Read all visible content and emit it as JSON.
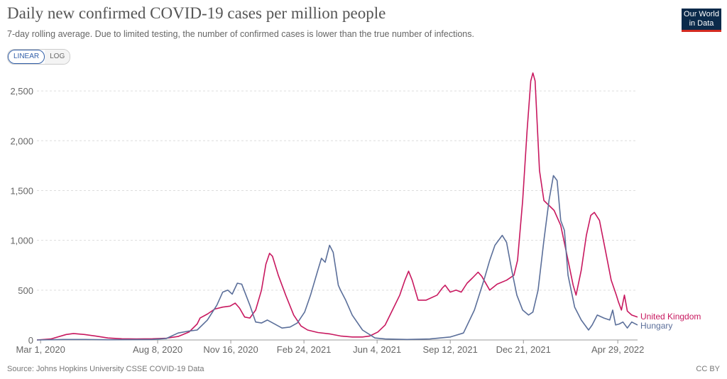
{
  "header": {
    "title": "Daily new confirmed COVID-19 cases per million people",
    "subtitle": "7-day rolling average. Due to limited testing, the number of confirmed cases is lower than the true number of infections."
  },
  "logo": {
    "line1": "Our World",
    "line2": "in Data"
  },
  "scale_toggle": {
    "linear": "LINEAR",
    "log": "LOG",
    "selected": "LINEAR"
  },
  "footer": {
    "source": "Source: Johns Hopkins University CSSE COVID-19 Data",
    "license": "CC BY"
  },
  "colors": {
    "uk": "#c8185f",
    "hungary": "#5b6f9a",
    "grid": "#dddddd"
  },
  "chart_data": {
    "type": "line",
    "title": "Daily new confirmed COVID-19 cases per million people",
    "xlabel": "",
    "ylabel": "",
    "ylim": [
      0,
      2700
    ],
    "xlim": [
      "2020-02-25",
      "2022-05-26"
    ],
    "y_ticks": [
      0,
      500,
      1000,
      1500,
      2000,
      2500
    ],
    "y_tick_labels": [
      "0",
      "500",
      "1,000",
      "1,500",
      "2,000",
      "2,500"
    ],
    "x_ticks": [
      "2020-03-01",
      "2020-08-08",
      "2020-11-16",
      "2021-02-24",
      "2021-06-04",
      "2021-09-12",
      "2021-12-21",
      "2022-04-29"
    ],
    "x_tick_labels": [
      "Mar 1, 2020",
      "Aug 8, 2020",
      "Nov 16, 2020",
      "Feb 24, 2021",
      "Jun 4, 2021",
      "Sep 12, 2021",
      "Dec 21, 2021",
      "Apr 29, 2022"
    ],
    "grid": true,
    "legend": "right, at line ends",
    "series": [
      {
        "name": "United Kingdom",
        "points": [
          [
            "2020-02-25",
            0
          ],
          [
            "2020-03-15",
            10
          ],
          [
            "2020-04-05",
            55
          ],
          [
            "2020-04-15",
            65
          ],
          [
            "2020-04-30",
            55
          ],
          [
            "2020-05-15",
            40
          ],
          [
            "2020-06-01",
            20
          ],
          [
            "2020-06-20",
            12
          ],
          [
            "2020-07-10",
            10
          ],
          [
            "2020-08-01",
            12
          ],
          [
            "2020-08-20",
            18
          ],
          [
            "2020-09-05",
            35
          ],
          [
            "2020-09-20",
            80
          ],
          [
            "2020-10-01",
            160
          ],
          [
            "2020-10-05",
            220
          ],
          [
            "2020-10-15",
            260
          ],
          [
            "2020-10-25",
            310
          ],
          [
            "2020-11-05",
            330
          ],
          [
            "2020-11-15",
            340
          ],
          [
            "2020-11-22",
            370
          ],
          [
            "2020-11-28",
            320
          ],
          [
            "2020-12-05",
            230
          ],
          [
            "2020-12-12",
            220
          ],
          [
            "2020-12-20",
            300
          ],
          [
            "2020-12-28",
            500
          ],
          [
            "2021-01-03",
            760
          ],
          [
            "2021-01-08",
            870
          ],
          [
            "2021-01-12",
            840
          ],
          [
            "2021-01-20",
            650
          ],
          [
            "2021-01-30",
            450
          ],
          [
            "2021-02-10",
            250
          ],
          [
            "2021-02-20",
            140
          ],
          [
            "2021-03-01",
            100
          ],
          [
            "2021-03-15",
            75
          ],
          [
            "2021-04-01",
            60
          ],
          [
            "2021-04-15",
            40
          ],
          [
            "2021-05-01",
            30
          ],
          [
            "2021-05-15",
            30
          ],
          [
            "2021-05-25",
            40
          ],
          [
            "2021-06-05",
            80
          ],
          [
            "2021-06-15",
            150
          ],
          [
            "2021-06-25",
            300
          ],
          [
            "2021-07-05",
            450
          ],
          [
            "2021-07-12",
            600
          ],
          [
            "2021-07-17",
            690
          ],
          [
            "2021-07-22",
            600
          ],
          [
            "2021-07-30",
            400
          ],
          [
            "2021-08-10",
            400
          ],
          [
            "2021-08-25",
            450
          ],
          [
            "2021-09-01",
            520
          ],
          [
            "2021-09-05",
            550
          ],
          [
            "2021-09-12",
            480
          ],
          [
            "2021-09-20",
            500
          ],
          [
            "2021-09-27",
            480
          ],
          [
            "2021-10-05",
            570
          ],
          [
            "2021-10-12",
            620
          ],
          [
            "2021-10-20",
            680
          ],
          [
            "2021-10-25",
            640
          ],
          [
            "2021-11-05",
            500
          ],
          [
            "2021-11-15",
            560
          ],
          [
            "2021-11-28",
            600
          ],
          [
            "2021-12-08",
            650
          ],
          [
            "2021-12-13",
            800
          ],
          [
            "2021-12-20",
            1400
          ],
          [
            "2021-12-26",
            2100
          ],
          [
            "2021-12-31",
            2600
          ],
          [
            "2022-01-03",
            2680
          ],
          [
            "2022-01-06",
            2600
          ],
          [
            "2022-01-12",
            1700
          ],
          [
            "2022-01-18",
            1400
          ],
          [
            "2022-01-25",
            1350
          ],
          [
            "2022-02-01",
            1300
          ],
          [
            "2022-02-10",
            1150
          ],
          [
            "2022-02-20",
            800
          ],
          [
            "2022-02-27",
            550
          ],
          [
            "2022-03-03",
            450
          ],
          [
            "2022-03-10",
            700
          ],
          [
            "2022-03-17",
            1050
          ],
          [
            "2022-03-23",
            1250
          ],
          [
            "2022-03-28",
            1280
          ],
          [
            "2022-04-04",
            1200
          ],
          [
            "2022-04-12",
            900
          ],
          [
            "2022-04-20",
            600
          ],
          [
            "2022-04-27",
            450
          ],
          [
            "2022-04-30",
            380
          ],
          [
            "2022-05-04",
            300
          ],
          [
            "2022-05-08",
            450
          ],
          [
            "2022-05-12",
            290
          ],
          [
            "2022-05-18",
            250
          ],
          [
            "2022-05-26",
            230
          ]
        ]
      },
      {
        "name": "Hungary",
        "points": [
          [
            "2020-02-25",
            0
          ],
          [
            "2020-04-01",
            5
          ],
          [
            "2020-05-01",
            5
          ],
          [
            "2020-06-01",
            2
          ],
          [
            "2020-08-01",
            5
          ],
          [
            "2020-08-20",
            15
          ],
          [
            "2020-09-05",
            70
          ],
          [
            "2020-09-20",
            90
          ],
          [
            "2020-10-01",
            100
          ],
          [
            "2020-10-15",
            200
          ],
          [
            "2020-10-28",
            350
          ],
          [
            "2020-11-05",
            480
          ],
          [
            "2020-11-12",
            500
          ],
          [
            "2020-11-18",
            460
          ],
          [
            "2020-11-25",
            570
          ],
          [
            "2020-12-01",
            560
          ],
          [
            "2020-12-12",
            350
          ],
          [
            "2020-12-20",
            180
          ],
          [
            "2020-12-28",
            170
          ],
          [
            "2021-01-05",
            200
          ],
          [
            "2021-01-10",
            180
          ],
          [
            "2021-01-25",
            120
          ],
          [
            "2021-02-05",
            130
          ],
          [
            "2021-02-15",
            170
          ],
          [
            "2021-02-25",
            280
          ],
          [
            "2021-03-05",
            450
          ],
          [
            "2021-03-15",
            700
          ],
          [
            "2021-03-20",
            820
          ],
          [
            "2021-03-25",
            780
          ],
          [
            "2021-03-31",
            950
          ],
          [
            "2021-04-05",
            880
          ],
          [
            "2021-04-12",
            550
          ],
          [
            "2021-04-15",
            500
          ],
          [
            "2021-04-22",
            400
          ],
          [
            "2021-05-01",
            250
          ],
          [
            "2021-05-15",
            100
          ],
          [
            "2021-06-01",
            20
          ],
          [
            "2021-06-15",
            10
          ],
          [
            "2021-07-15",
            5
          ],
          [
            "2021-08-15",
            10
          ],
          [
            "2021-09-12",
            30
          ],
          [
            "2021-09-30",
            70
          ],
          [
            "2021-10-15",
            300
          ],
          [
            "2021-10-28",
            600
          ],
          [
            "2021-11-05",
            800
          ],
          [
            "2021-11-12",
            950
          ],
          [
            "2021-11-22",
            1050
          ],
          [
            "2021-11-28",
            980
          ],
          [
            "2021-12-05",
            700
          ],
          [
            "2021-12-12",
            450
          ],
          [
            "2021-12-20",
            300
          ],
          [
            "2021-12-28",
            250
          ],
          [
            "2022-01-03",
            280
          ],
          [
            "2022-01-10",
            500
          ],
          [
            "2022-01-18",
            1000
          ],
          [
            "2022-01-25",
            1400
          ],
          [
            "2022-01-31",
            1650
          ],
          [
            "2022-02-05",
            1600
          ],
          [
            "2022-02-10",
            1200
          ],
          [
            "2022-02-15",
            1100
          ],
          [
            "2022-02-20",
            650
          ],
          [
            "2022-03-01",
            330
          ],
          [
            "2022-03-10",
            200
          ],
          [
            "2022-03-20",
            100
          ],
          [
            "2022-03-25",
            150
          ],
          [
            "2022-04-01",
            250
          ],
          [
            "2022-04-10",
            220
          ],
          [
            "2022-04-18",
            200
          ],
          [
            "2022-04-22",
            300
          ],
          [
            "2022-04-26",
            150
          ],
          [
            "2022-05-01",
            160
          ],
          [
            "2022-05-06",
            180
          ],
          [
            "2022-05-12",
            120
          ],
          [
            "2022-05-18",
            180
          ],
          [
            "2022-05-26",
            150
          ]
        ]
      }
    ]
  }
}
